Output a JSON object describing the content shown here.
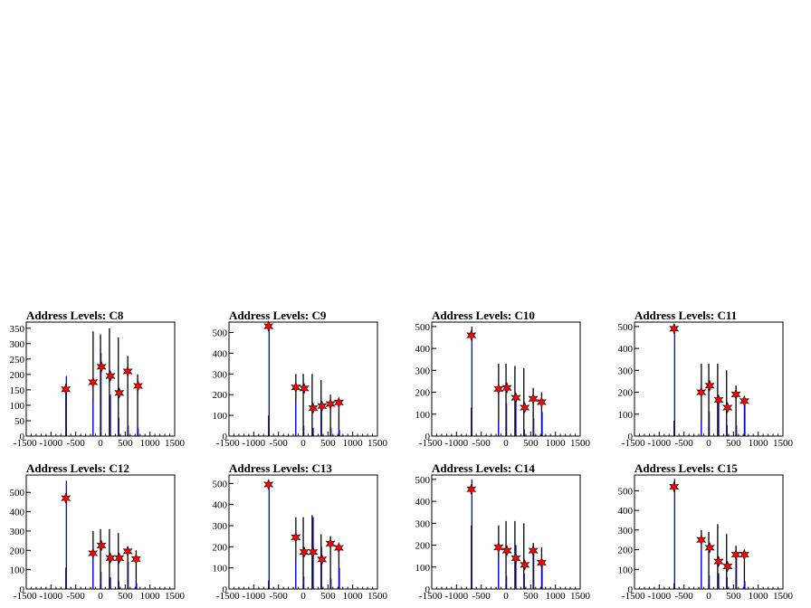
{
  "colors": {
    "black_bars": "#000000",
    "blue_bars": "#0000ff",
    "markers": "#ff0000",
    "frame": "#000000"
  },
  "chart_data": [
    {
      "type": "bar",
      "title": "Address Levels: C8",
      "xlim": [
        -1500,
        1500
      ],
      "ylim": [
        0,
        370
      ],
      "xticks": [
        "-1500",
        "-1000",
        "-500",
        "0",
        "500",
        "1000",
        "1500"
      ],
      "yticks": [
        "0",
        "50",
        "100",
        "150",
        "200",
        "250",
        "300",
        "350"
      ],
      "series": [
        {
          "color": "black",
          "x": [
            -700,
            -150,
            0,
            180,
            360,
            550,
            750
          ],
          "values": [
            170,
            340,
            330,
            350,
            320,
            260,
            200
          ]
        },
        {
          "color": "blue",
          "x": [
            -690,
            -150,
            10,
            200,
            370,
            560,
            760
          ],
          "values": [
            195,
            115,
            270,
            135,
            60,
            35,
            25
          ]
        }
      ],
      "markers": {
        "x": [
          -700,
          -150,
          20,
          200,
          380,
          550,
          760
        ],
        "y": [
          152,
          175,
          225,
          195,
          140,
          210,
          163
        ]
      }
    },
    {
      "type": "bar",
      "title": "Address Levels: C9",
      "xlim": [
        -1500,
        1500
      ],
      "ylim": [
        0,
        550
      ],
      "xticks": [
        "-1500",
        "-1000",
        "-500",
        "0",
        "500",
        "1000",
        "1500"
      ],
      "yticks": [
        "0",
        "100",
        "200",
        "300",
        "400",
        "500"
      ],
      "series": [
        {
          "color": "black",
          "x": [
            -700,
            -150,
            0,
            180,
            360,
            550,
            720
          ],
          "values": [
            100,
            300,
            300,
            300,
            270,
            200,
            170
          ]
        },
        {
          "color": "blue",
          "x": [
            -690,
            -150,
            10,
            200,
            370,
            560,
            730
          ],
          "values": [
            530,
            170,
            50,
            40,
            150,
            40,
            30
          ]
        }
      ],
      "markers": {
        "x": [
          -700,
          -150,
          20,
          200,
          380,
          550,
          720
        ],
        "y": [
          530,
          235,
          230,
          135,
          145,
          155,
          162
        ]
      }
    },
    {
      "type": "bar",
      "title": "Address Levels: C10",
      "xlim": [
        -1500,
        1500
      ],
      "ylim": [
        0,
        520
      ],
      "xticks": [
        "-1500",
        "-1000",
        "-500",
        "0",
        "500",
        "1000",
        "1500"
      ],
      "yticks": [
        "0",
        "100",
        "200",
        "300",
        "400",
        "500"
      ],
      "series": [
        {
          "color": "black",
          "x": [
            -700,
            -150,
            0,
            180,
            360,
            550,
            720
          ],
          "values": [
            130,
            330,
            330,
            320,
            310,
            220,
            200
          ]
        },
        {
          "color": "blue",
          "x": [
            -690,
            -150,
            10,
            200,
            370,
            560,
            730
          ],
          "values": [
            500,
            60,
            150,
            160,
            30,
            80,
            110
          ]
        }
      ],
      "markers": {
        "x": [
          -700,
          -150,
          20,
          200,
          380,
          550,
          720
        ],
        "y": [
          460,
          215,
          220,
          175,
          130,
          170,
          155
        ]
      }
    },
    {
      "type": "bar",
      "title": "Address Levels: C11",
      "xlim": [
        -1500,
        1500
      ],
      "ylim": [
        0,
        520
      ],
      "xticks": [
        "-1500",
        "-1000",
        "-500",
        "0",
        "500",
        "1000",
        "1500"
      ],
      "yticks": [
        "0",
        "100",
        "200",
        "300",
        "400",
        "500"
      ],
      "series": [
        {
          "color": "black",
          "x": [
            -700,
            -150,
            0,
            180,
            360,
            550,
            720
          ],
          "values": [
            70,
            330,
            330,
            330,
            300,
            230,
            180
          ]
        },
        {
          "color": "blue",
          "x": [
            -690,
            -150,
            10,
            200,
            370,
            560,
            730
          ],
          "values": [
            510,
            60,
            110,
            180,
            50,
            50,
            160
          ]
        }
      ],
      "markers": {
        "x": [
          -700,
          -150,
          20,
          200,
          380,
          550,
          720
        ],
        "y": [
          490,
          200,
          230,
          165,
          130,
          190,
          160
        ]
      }
    },
    {
      "type": "bar",
      "title": "Address Levels: C12",
      "xlim": [
        -1500,
        1500
      ],
      "ylim": [
        0,
        590
      ],
      "xticks": [
        "-1500",
        "-1000",
        "-500",
        "0",
        "500",
        "1000",
        "1500"
      ],
      "yticks": [
        "0",
        "100",
        "200",
        "300",
        "400",
        "500"
      ],
      "series": [
        {
          "color": "black",
          "x": [
            -700,
            -150,
            0,
            180,
            360,
            550,
            720
          ],
          "values": [
            110,
            300,
            310,
            310,
            290,
            220,
            200
          ]
        },
        {
          "color": "blue",
          "x": [
            -690,
            -150,
            10,
            200,
            370,
            560,
            730
          ],
          "values": [
            560,
            180,
            90,
            60,
            40,
            140,
            30
          ]
        }
      ],
      "markers": {
        "x": [
          -700,
          -150,
          20,
          200,
          380,
          550,
          720
        ],
        "y": [
          470,
          185,
          225,
          160,
          160,
          195,
          155
        ]
      }
    },
    {
      "type": "bar",
      "title": "Address Levels: C13",
      "xlim": [
        -1500,
        1500
      ],
      "ylim": [
        0,
        540
      ],
      "xticks": [
        "-1500",
        "-1000",
        "-500",
        "0",
        "500",
        "1000",
        "1500"
      ],
      "yticks": [
        "0",
        "100",
        "200",
        "300",
        "400",
        "500"
      ],
      "series": [
        {
          "color": "black",
          "x": [
            -700,
            -150,
            0,
            180,
            360,
            550,
            720
          ],
          "values": [
            40,
            340,
            340,
            350,
            260,
            250,
            200
          ]
        },
        {
          "color": "blue",
          "x": [
            -690,
            -150,
            10,
            200,
            370,
            560,
            730
          ],
          "values": [
            510,
            140,
            60,
            340,
            200,
            50,
            100
          ]
        }
      ],
      "markers": {
        "x": [
          -700,
          -150,
          20,
          200,
          380,
          550,
          720
        ],
        "y": [
          495,
          245,
          175,
          175,
          140,
          215,
          195
        ]
      }
    },
    {
      "type": "bar",
      "title": "Address Levels: C14",
      "xlim": [
        -1500,
        1500
      ],
      "ylim": [
        0,
        520
      ],
      "xticks": [
        "-1500",
        "-1000",
        "-500",
        "0",
        "500",
        "1000",
        "1500"
      ],
      "yticks": [
        "0",
        "100",
        "200",
        "300",
        "400",
        "500"
      ],
      "series": [
        {
          "color": "black",
          "x": [
            -700,
            -150,
            0,
            180,
            360,
            550,
            720
          ],
          "values": [
            290,
            290,
            310,
            310,
            300,
            210,
            190
          ]
        },
        {
          "color": "blue",
          "x": [
            -690,
            -150,
            10,
            200,
            370,
            560,
            730
          ],
          "values": [
            500,
            140,
            60,
            200,
            70,
            190,
            110
          ]
        }
      ],
      "markers": {
        "x": [
          -700,
          -150,
          20,
          200,
          380,
          550,
          720
        ],
        "y": [
          455,
          190,
          175,
          140,
          110,
          175,
          120
        ]
      }
    },
    {
      "type": "bar",
      "title": "Address Levels: C15",
      "xlim": [
        -1500,
        1500
      ],
      "ylim": [
        0,
        580
      ],
      "xticks": [
        "-1500",
        "-1000",
        "-500",
        "0",
        "500",
        "1000",
        "1500"
      ],
      "yticks": [
        "0",
        "100",
        "200",
        "300",
        "400",
        "500"
      ],
      "series": [
        {
          "color": "black",
          "x": [
            -700,
            -150,
            0,
            180,
            360,
            550,
            720
          ],
          "values": [
            30,
            300,
            290,
            330,
            280,
            220,
            200
          ]
        },
        {
          "color": "blue",
          "x": [
            -690,
            -150,
            10,
            200,
            370,
            560,
            730
          ],
          "values": [
            560,
            200,
            70,
            80,
            60,
            160,
            40
          ]
        }
      ],
      "markers": {
        "x": [
          -700,
          -150,
          20,
          200,
          380,
          550,
          720
        ],
        "y": [
          520,
          250,
          210,
          140,
          115,
          175,
          175
        ]
      }
    }
  ]
}
